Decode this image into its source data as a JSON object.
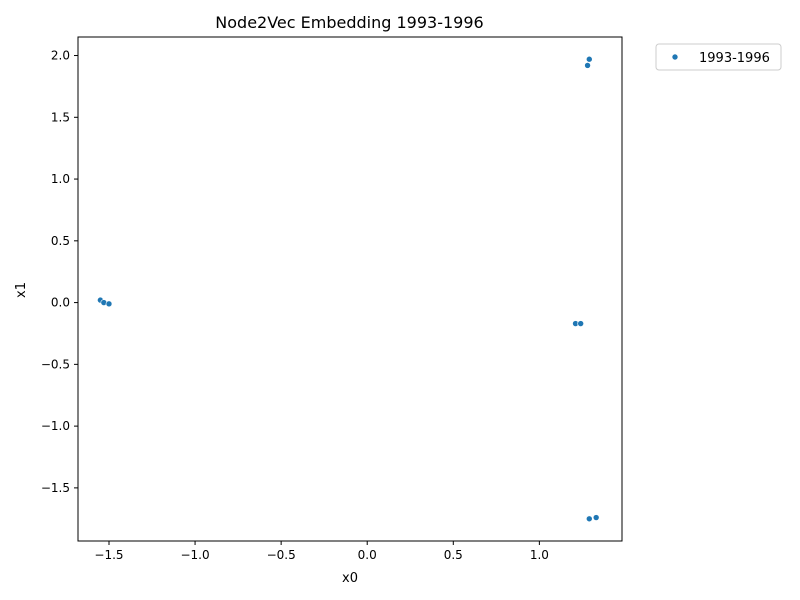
{
  "chart_data": {
    "type": "scatter",
    "title": "Node2Vec Embedding 1993-1996",
    "xlabel": "x0",
    "ylabel": "x1",
    "xlim": [
      -1.68,
      1.48
    ],
    "ylim": [
      -1.93,
      2.15
    ],
    "xticks": [
      -1.5,
      -1.0,
      -0.5,
      0.0,
      0.5,
      1.0
    ],
    "xtick_labels": [
      "−1.5",
      "−1.0",
      "−0.5",
      "0.0",
      "0.5",
      "1.0"
    ],
    "yticks": [
      -1.5,
      -1.0,
      -0.5,
      0.0,
      0.5,
      1.0,
      1.5,
      2.0
    ],
    "ytick_labels": [
      "−1.5",
      "−1.0",
      "−0.5",
      "0.0",
      "0.5",
      "1.0",
      "1.5",
      "2.0"
    ],
    "grid": false,
    "legend_position": "outside-top-right",
    "series": [
      {
        "name": "1993-1996",
        "color": "#1f77b4",
        "marker": "circle",
        "points": [
          {
            "x": -1.55,
            "y": 0.02
          },
          {
            "x": -1.53,
            "y": 0.0
          },
          {
            "x": -1.5,
            "y": -0.01
          },
          {
            "x": 1.21,
            "y": -0.17
          },
          {
            "x": 1.24,
            "y": -0.17
          },
          {
            "x": 1.28,
            "y": 1.92
          },
          {
            "x": 1.29,
            "y": 1.97
          },
          {
            "x": 1.29,
            "y": -1.75
          },
          {
            "x": 1.33,
            "y": -1.74
          }
        ]
      }
    ]
  }
}
